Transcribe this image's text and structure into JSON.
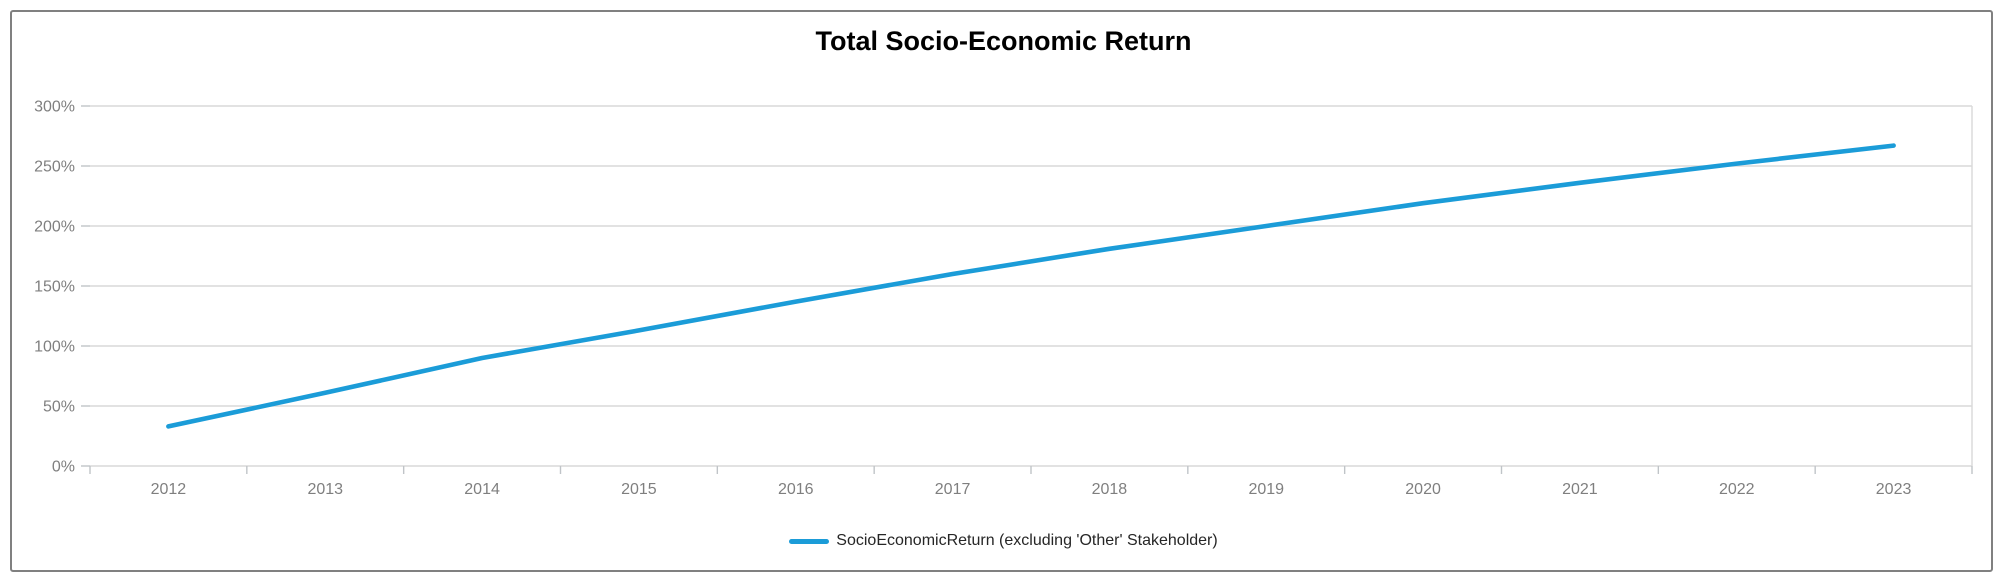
{
  "title": "Total Socio-Economic Return",
  "legend": {
    "label": "SocioEconomicReturn (excluding 'Other' Stakeholder)"
  },
  "colors": {
    "line": "#1B9CD8",
    "grid": "#D9D9D9",
    "tick": "#C0C4C8",
    "axis_text": "#7F7F7F",
    "border": "#808080",
    "legend_text": "#262626",
    "title_text": "#000000"
  },
  "chart_data": {
    "type": "line",
    "title": "Total Socio-Economic Return",
    "categories": [
      "2012",
      "2013",
      "2014",
      "2015",
      "2016",
      "2017",
      "2018",
      "2019",
      "2020",
      "2021",
      "2022",
      "2023"
    ],
    "series": [
      {
        "name": "SocioEconomicReturn (excluding 'Other' Stakeholder)",
        "values": [
          33,
          61,
          90,
          113,
          137,
          160,
          181,
          200,
          219,
          236,
          252,
          267
        ]
      }
    ],
    "unit": "%",
    "xlabel": "",
    "ylabel": "",
    "ylim": [
      0,
      300
    ],
    "ytick_step": 50,
    "ytick_labels": [
      "0%",
      "50%",
      "100%",
      "150%",
      "200%",
      "250%",
      "300%"
    ],
    "grid": true,
    "legend_position": "bottom"
  }
}
